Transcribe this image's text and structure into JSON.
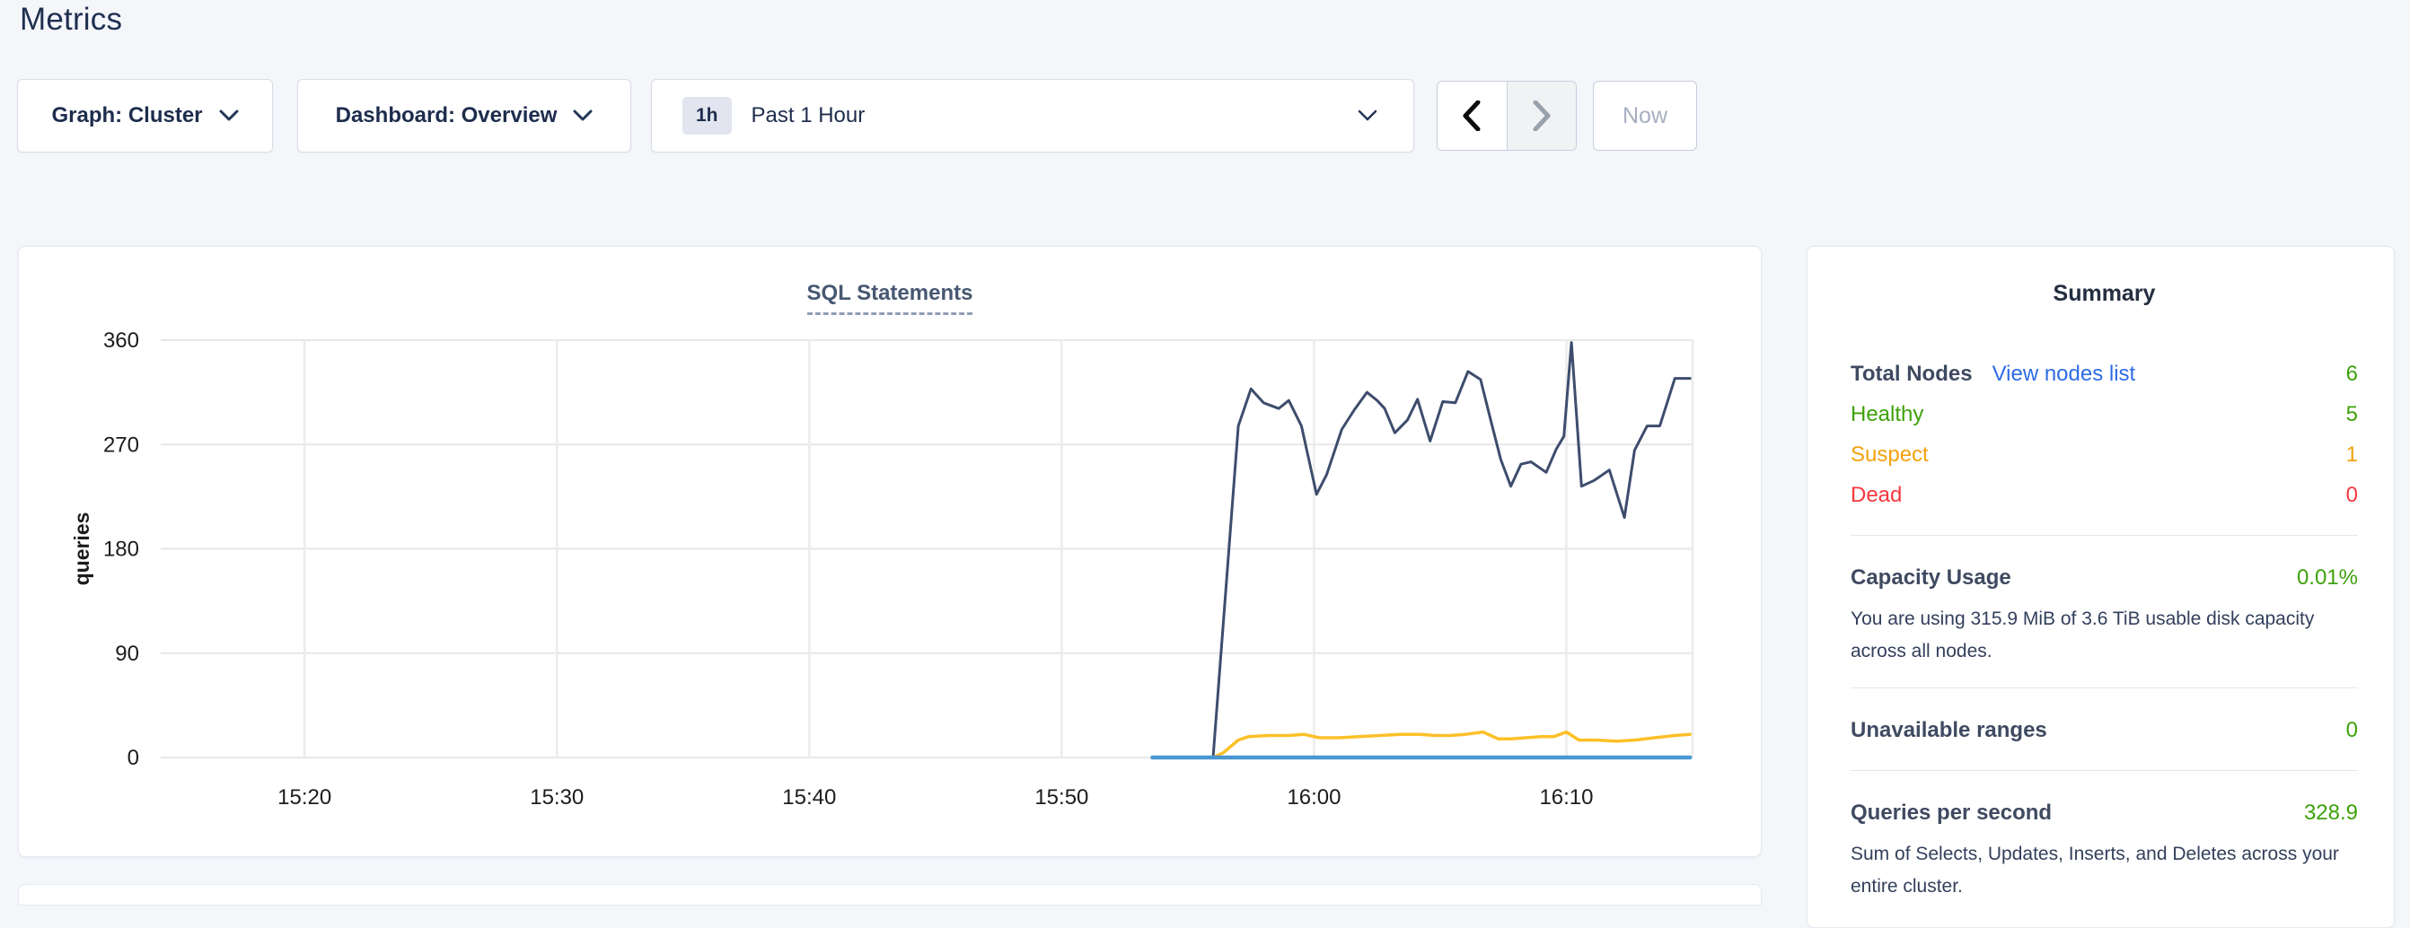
{
  "page": {
    "title": "Metrics"
  },
  "toolbar": {
    "graph_selector": "Graph: Cluster",
    "dashboard_selector": "Dashboard: Overview",
    "time_badge": "1h",
    "time_label": "Past 1 Hour",
    "now_button": "Now"
  },
  "chart_data": {
    "type": "line",
    "title": "SQL Statements",
    "ylabel": "queries",
    "ylim": [
      0,
      360
    ],
    "yticks": [
      0,
      90,
      180,
      270,
      360
    ],
    "xtick_labels": [
      "15:20",
      "15:30",
      "15:40",
      "15:50",
      "16:00",
      "16:10"
    ],
    "xtick_minutes": [
      0,
      10,
      20,
      30,
      40,
      50
    ],
    "x_domain_minutes": [
      -5.7,
      55.0
    ],
    "x_reference": "minutes after 15:20",
    "grid": true,
    "legend_position": "none",
    "series": [
      {
        "name": "statements-dark-line",
        "color": "#3e4d6d",
        "width": 3,
        "points": [
          [
            36.0,
            0
          ],
          [
            37.0,
            286
          ],
          [
            37.5,
            318
          ],
          [
            38.0,
            306
          ],
          [
            38.6,
            301
          ],
          [
            39.0,
            308
          ],
          [
            39.5,
            286
          ],
          [
            40.1,
            227
          ],
          [
            40.5,
            244
          ],
          [
            41.1,
            283
          ],
          [
            41.6,
            300
          ],
          [
            42.1,
            315
          ],
          [
            42.5,
            308
          ],
          [
            42.8,
            301
          ],
          [
            43.2,
            280
          ],
          [
            43.7,
            291
          ],
          [
            44.1,
            309
          ],
          [
            44.6,
            273
          ],
          [
            45.1,
            307
          ],
          [
            45.6,
            306
          ],
          [
            46.1,
            333
          ],
          [
            46.6,
            326
          ],
          [
            47.0,
            291
          ],
          [
            47.4,
            257
          ],
          [
            47.8,
            234
          ],
          [
            48.2,
            253
          ],
          [
            48.6,
            255
          ],
          [
            49.2,
            246
          ],
          [
            49.6,
            266
          ],
          [
            49.9,
            277
          ],
          [
            50.2,
            358
          ],
          [
            50.6,
            234
          ],
          [
            51.1,
            239
          ],
          [
            51.7,
            248
          ],
          [
            52.3,
            207
          ],
          [
            52.7,
            265
          ],
          [
            53.2,
            286
          ],
          [
            53.7,
            286
          ],
          [
            54.3,
            327
          ],
          [
            54.9,
            327
          ]
        ]
      },
      {
        "name": "statements-yellow-line",
        "color": "#fdc028",
        "width": 3.5,
        "points": [
          [
            36.0,
            0
          ],
          [
            36.4,
            4
          ],
          [
            37.0,
            15
          ],
          [
            37.4,
            18
          ],
          [
            38.2,
            19
          ],
          [
            39.0,
            19
          ],
          [
            39.6,
            20
          ],
          [
            40.2,
            17
          ],
          [
            41.0,
            17
          ],
          [
            41.8,
            18
          ],
          [
            42.6,
            19
          ],
          [
            43.4,
            20
          ],
          [
            44.2,
            20
          ],
          [
            44.8,
            19
          ],
          [
            45.4,
            19
          ],
          [
            46.0,
            20
          ],
          [
            46.7,
            22
          ],
          [
            47.3,
            16
          ],
          [
            47.8,
            16
          ],
          [
            48.4,
            17
          ],
          [
            49.0,
            18
          ],
          [
            49.5,
            18
          ],
          [
            50.0,
            22
          ],
          [
            50.5,
            15
          ],
          [
            51.2,
            15
          ],
          [
            52.0,
            14
          ],
          [
            52.7,
            15
          ],
          [
            53.5,
            17
          ],
          [
            54.3,
            19
          ],
          [
            54.9,
            20
          ]
        ]
      },
      {
        "name": "statements-blue-line",
        "color": "#4a97d2",
        "width": 4.5,
        "points": [
          [
            33.6,
            0
          ],
          [
            54.9,
            0
          ]
        ]
      }
    ]
  },
  "summary": {
    "title": "Summary",
    "nodes": {
      "total_label": "Total Nodes",
      "view_link": "View nodes list",
      "total_value": "6",
      "healthy_label": "Healthy",
      "healthy_value": "5",
      "suspect_label": "Suspect",
      "suspect_value": "1",
      "dead_label": "Dead",
      "dead_value": "0"
    },
    "capacity": {
      "label": "Capacity Usage",
      "value": "0.01%",
      "description": "You are using 315.9 MiB of 3.6 TiB usable disk capacity across all nodes."
    },
    "unavailable": {
      "label": "Unavailable ranges",
      "value": "0"
    },
    "qps": {
      "label": "Queries per second",
      "value": "328.9",
      "description": "Sum of Selects, Updates, Inserts, and Deletes across your entire cluster."
    },
    "colors": {
      "green": "#3da10a",
      "orange": "#f2a20e",
      "red": "#f5383c",
      "link": "#2e6be4"
    }
  }
}
